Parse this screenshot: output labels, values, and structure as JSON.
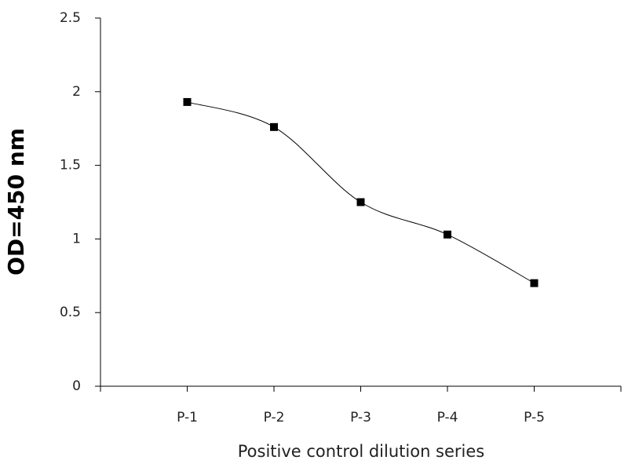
{
  "chart_data": {
    "type": "line",
    "x_label": "Positive control dilution series",
    "y_label": "OD=450 nm",
    "categories": [
      "P-1",
      "P-2",
      "P-3",
      "P-4",
      "P-5"
    ],
    "series": [
      {
        "values": [
          1.93,
          1.76,
          1.25,
          1.03,
          0.7
        ],
        "color": "#000000",
        "marker": "square",
        "smooth": true
      }
    ],
    "ylim": [
      0,
      2.5
    ],
    "yticks": [
      0,
      0.5,
      1,
      1.5,
      2,
      2.5
    ],
    "grid": false
  }
}
